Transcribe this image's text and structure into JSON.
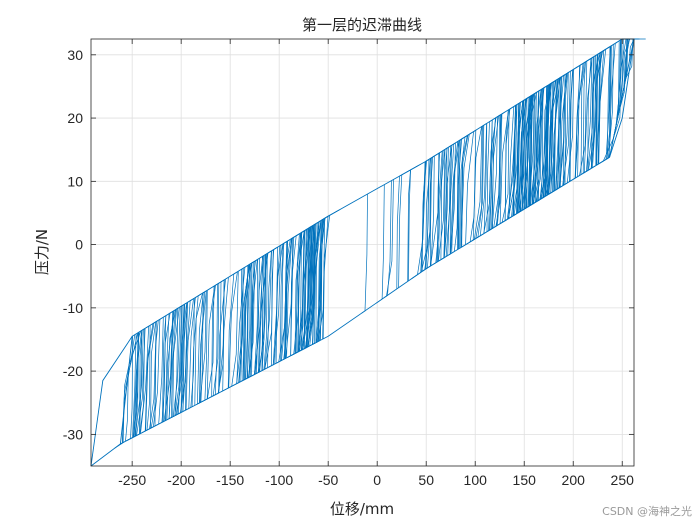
{
  "chart_data": {
    "type": "line",
    "title": "第一层的迟滞曲线",
    "xlabel": "位移/mm",
    "ylabel": "压力/N",
    "xlim": [
      -292,
      262
    ],
    "ylim": [
      -35,
      32.5
    ],
    "xticks": [
      -250,
      -200,
      -150,
      -100,
      -50,
      0,
      50,
      100,
      150,
      200,
      250
    ],
    "yticks": [
      -30,
      -20,
      -10,
      0,
      10,
      20,
      30
    ],
    "grid": true,
    "series_color": "#0072BD",
    "envelope": {
      "upper": [
        [
          -262,
          -31.5
        ],
        [
          -250,
          -14.5
        ],
        [
          -50,
          4.5
        ],
        [
          50,
          13.2
        ],
        [
          250,
          32.5
        ],
        [
          262,
          32.5
        ]
      ],
      "lower": [
        [
          -292,
          -35
        ],
        [
          -262,
          -31.5
        ],
        [
          -50,
          -14.5
        ],
        [
          50,
          -3.8
        ],
        [
          237,
          13.8
        ],
        [
          262,
          32.5
        ]
      ],
      "left_corner": [
        [
          -292,
          -35
        ],
        [
          -280,
          -21.5
        ],
        [
          -250,
          -14.5
        ]
      ],
      "right_corner": [
        [
          262,
          32.5
        ],
        [
          250,
          20.0
        ],
        [
          237,
          13.8
        ]
      ]
    },
    "cycles": [
      {
        "x_range": [
          -262,
          -50
        ],
        "count": 150
      },
      {
        "x_range": [
          -80,
          -55
        ],
        "count": 20
      },
      {
        "x_range": [
          -10,
          35
        ],
        "count": 8
      },
      {
        "x_range": [
          45,
          262
        ],
        "count": 150
      },
      {
        "x_range": [
          140,
          185
        ],
        "count": 50
      }
    ]
  },
  "watermark": "CSDN @海神之光"
}
